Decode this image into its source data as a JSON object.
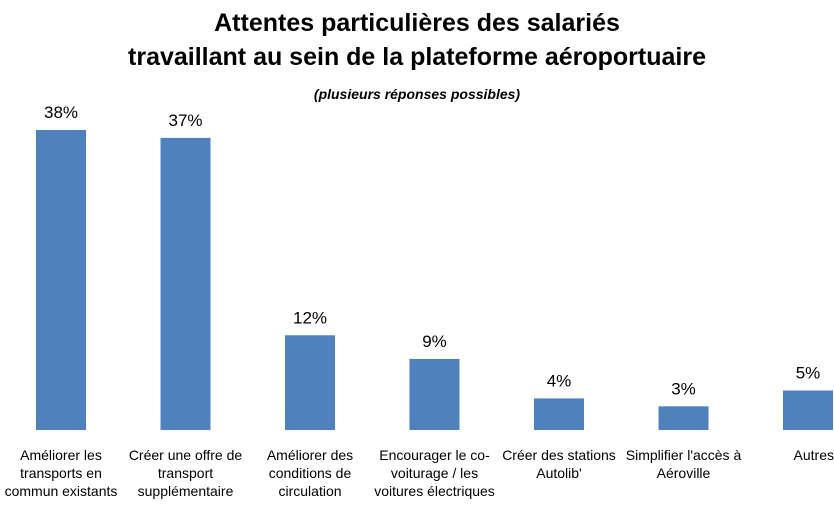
{
  "chart_data": {
    "type": "bar",
    "title": "Attentes particulières des salariés\ntravaillant au sein de la plateforme aéroportuaire",
    "subtitle": "(plusieurs réponses possibles)",
    "categories": [
      "Améliorer les transports en commun existants",
      "Créer une offre de transport supplémentaire",
      "Améliorer des conditions de circulation",
      "Encourager le co-voiturage / les voitures électriques",
      "Créer des stations Autolib'",
      "Simplifier l'accès à Aéroville",
      "Autres"
    ],
    "values": [
      38,
      37,
      12,
      9,
      4,
      3,
      5
    ],
    "value_labels": [
      "38%",
      "37%",
      "12%",
      "9%",
      "4%",
      "3%",
      "5%"
    ],
    "color": "#4f81bd"
  }
}
